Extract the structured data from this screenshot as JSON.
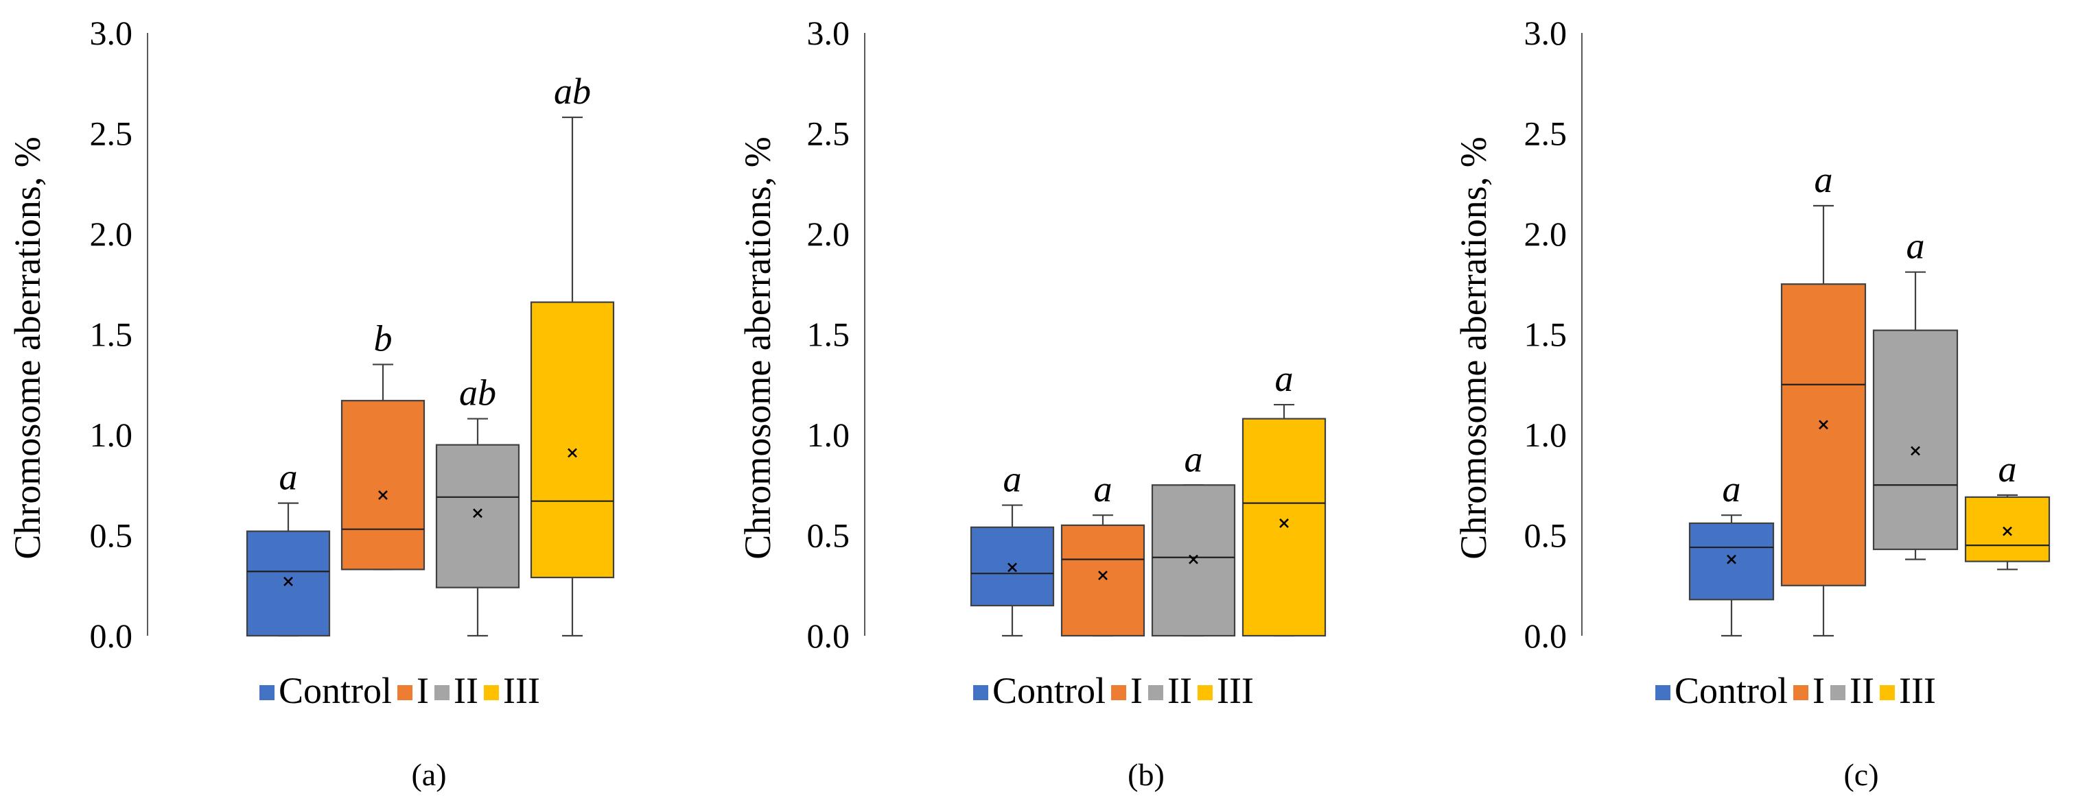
{
  "chart_data": [
    {
      "type": "box",
      "panel_label": "(a)",
      "ylabel": "Chromosome aberrations, %",
      "ylim": [
        0,
        3.0
      ],
      "ticks": [
        "0.0",
        "0.5",
        "1.0",
        "1.5",
        "2.0",
        "2.5",
        "3.0"
      ],
      "legend": [
        "Control",
        "I",
        "II",
        "III"
      ],
      "groups": [
        {
          "name": "Control",
          "color": "#4472C4",
          "min": 0.0,
          "q1": 0.0,
          "median": 0.32,
          "q3": 0.52,
          "max": 0.66,
          "mean": 0.27,
          "letter": "a"
        },
        {
          "name": "I",
          "color": "#ED7D31",
          "min": 0.33,
          "q1": 0.33,
          "median": 0.53,
          "q3": 1.17,
          "max": 1.35,
          "mean": 0.7,
          "letter": "b"
        },
        {
          "name": "II",
          "color": "#A5A5A5",
          "min": 0.0,
          "q1": 0.24,
          "median": 0.69,
          "q3": 0.95,
          "max": 1.08,
          "mean": 0.61,
          "letter": "ab"
        },
        {
          "name": "III",
          "color": "#FFC000",
          "min": 0.0,
          "q1": 0.29,
          "median": 0.67,
          "q3": 1.66,
          "max": 2.58,
          "mean": 0.91,
          "letter": "ab"
        }
      ]
    },
    {
      "type": "box",
      "panel_label": "(b)",
      "ylabel": "Chromosome aberrations, %",
      "ylim": [
        0,
        3.0
      ],
      "ticks": [
        "0.0",
        "0.5",
        "1.0",
        "1.5",
        "2.0",
        "2.5",
        "3.0"
      ],
      "legend": [
        "Control",
        "I",
        "II",
        "III"
      ],
      "groups": [
        {
          "name": "Control",
          "color": "#4472C4",
          "min": 0.0,
          "q1": 0.15,
          "median": 0.31,
          "q3": 0.54,
          "max": 0.65,
          "mean": 0.34,
          "letter": "a"
        },
        {
          "name": "I",
          "color": "#ED7D31",
          "min": 0.0,
          "q1": 0.0,
          "median": 0.38,
          "q3": 0.55,
          "max": 0.6,
          "mean": 0.3,
          "letter": "a"
        },
        {
          "name": "II",
          "color": "#A5A5A5",
          "min": 0.0,
          "q1": 0.0,
          "median": 0.39,
          "q3": 0.75,
          "max": 0.75,
          "mean": 0.38,
          "letter": "a"
        },
        {
          "name": "III",
          "color": "#FFC000",
          "min": 0.0,
          "q1": 0.0,
          "median": 0.66,
          "q3": 1.08,
          "max": 1.15,
          "mean": 0.56,
          "letter": "a"
        }
      ]
    },
    {
      "type": "box",
      "panel_label": "(c)",
      "ylabel": "Chromosome aberrations, %",
      "ylim": [
        0,
        3.0
      ],
      "ticks": [
        "0.0",
        "0.5",
        "1.0",
        "1.5",
        "2.0",
        "2.5",
        "3.0"
      ],
      "legend": [
        "Control",
        "I",
        "II",
        "III"
      ],
      "groups": [
        {
          "name": "Control",
          "color": "#4472C4",
          "min": 0.0,
          "q1": 0.18,
          "median": 0.44,
          "q3": 0.56,
          "max": 0.6,
          "mean": 0.38,
          "letter": "a"
        },
        {
          "name": "I",
          "color": "#ED7D31",
          "min": 0.0,
          "q1": 0.25,
          "median": 1.25,
          "q3": 1.75,
          "max": 2.14,
          "mean": 1.05,
          "letter": "a"
        },
        {
          "name": "II",
          "color": "#A5A5A5",
          "min": 0.38,
          "q1": 0.43,
          "median": 0.75,
          "q3": 1.52,
          "max": 1.81,
          "mean": 0.92,
          "letter": "a"
        },
        {
          "name": "III",
          "color": "#FFC000",
          "min": 0.33,
          "q1": 0.37,
          "median": 0.45,
          "q3": 0.69,
          "max": 0.7,
          "mean": 0.52,
          "letter": "a"
        }
      ]
    }
  ]
}
